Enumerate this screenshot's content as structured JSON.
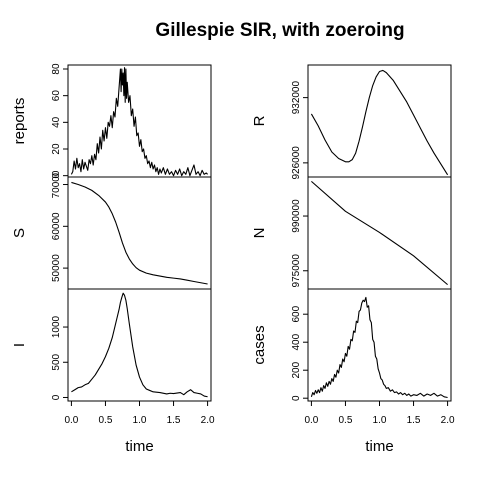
{
  "title": "Gillespie SIR, with zoeroing",
  "chart_data": [
    {
      "type": "line",
      "ylabel": "reports",
      "xlabel": "",
      "xlim": [
        -0.05,
        2.05
      ],
      "ylim": [
        -1,
        83
      ],
      "yticks": [
        0,
        20,
        40,
        60,
        80
      ],
      "x_tick_labels_shown": false,
      "points": [
        [
          0,
          1
        ],
        [
          0.02,
          3
        ],
        [
          0.04,
          11
        ],
        [
          0.06,
          5
        ],
        [
          0.08,
          13
        ],
        [
          0.1,
          6
        ],
        [
          0.12,
          9
        ],
        [
          0.14,
          3
        ],
        [
          0.16,
          12
        ],
        [
          0.18,
          5
        ],
        [
          0.2,
          10
        ],
        [
          0.22,
          7
        ],
        [
          0.24,
          4
        ],
        [
          0.26,
          12
        ],
        [
          0.28,
          9
        ],
        [
          0.3,
          15
        ],
        [
          0.32,
          8
        ],
        [
          0.34,
          16
        ],
        [
          0.36,
          12
        ],
        [
          0.38,
          24
        ],
        [
          0.4,
          17
        ],
        [
          0.42,
          29
        ],
        [
          0.44,
          20
        ],
        [
          0.46,
          34
        ],
        [
          0.48,
          26
        ],
        [
          0.5,
          36
        ],
        [
          0.52,
          28
        ],
        [
          0.54,
          40
        ],
        [
          0.56,
          37
        ],
        [
          0.58,
          45
        ],
        [
          0.6,
          36
        ],
        [
          0.62,
          48
        ],
        [
          0.64,
          44
        ],
        [
          0.66,
          58
        ],
        [
          0.68,
          52
        ],
        [
          0.7,
          66
        ],
        [
          0.72,
          80
        ],
        [
          0.73,
          63
        ],
        [
          0.74,
          80
        ],
        [
          0.75,
          68
        ],
        [
          0.76,
          77
        ],
        [
          0.77,
          60
        ],
        [
          0.78,
          81
        ],
        [
          0.79,
          55
        ],
        [
          0.8,
          80
        ],
        [
          0.81,
          58
        ],
        [
          0.82,
          70
        ],
        [
          0.84,
          55
        ],
        [
          0.86,
          60
        ],
        [
          0.88,
          45
        ],
        [
          0.9,
          50
        ],
        [
          0.92,
          37
        ],
        [
          0.94,
          44
        ],
        [
          0.96,
          30
        ],
        [
          0.98,
          32
        ],
        [
          1.0,
          22
        ],
        [
          1.02,
          27
        ],
        [
          1.04,
          18
        ],
        [
          1.06,
          20
        ],
        [
          1.08,
          13
        ],
        [
          1.1,
          15
        ],
        [
          1.12,
          9
        ],
        [
          1.14,
          11
        ],
        [
          1.16,
          6
        ],
        [
          1.18,
          10
        ],
        [
          1.2,
          5
        ],
        [
          1.22,
          8
        ],
        [
          1.24,
          3
        ],
        [
          1.26,
          6
        ],
        [
          1.28,
          1
        ],
        [
          1.3,
          5
        ],
        [
          1.32,
          2
        ],
        [
          1.35,
          6
        ],
        [
          1.38,
          1
        ],
        [
          1.41,
          5
        ],
        [
          1.44,
          1
        ],
        [
          1.47,
          3
        ],
        [
          1.5,
          0
        ],
        [
          1.53,
          4
        ],
        [
          1.56,
          1
        ],
        [
          1.59,
          5
        ],
        [
          1.62,
          0
        ],
        [
          1.65,
          3
        ],
        [
          1.68,
          1
        ],
        [
          1.71,
          6
        ],
        [
          1.74,
          0
        ],
        [
          1.77,
          4
        ],
        [
          1.8,
          8
        ],
        [
          1.83,
          1
        ],
        [
          1.86,
          3
        ],
        [
          1.89,
          0
        ],
        [
          1.92,
          4
        ],
        [
          1.95,
          1
        ],
        [
          1.98,
          2
        ],
        [
          2.0,
          1
        ]
      ]
    },
    {
      "type": "line",
      "ylabel": "S",
      "xlabel": "",
      "xlim": [
        -0.05,
        2.05
      ],
      "ylim": [
        45000,
        71800
      ],
      "yticks": [
        50000,
        60000,
        70000
      ],
      "x_tick_labels_shown": false,
      "points": [
        [
          0,
          70500
        ],
        [
          0.1,
          70000
        ],
        [
          0.2,
          69400
        ],
        [
          0.3,
          68600
        ],
        [
          0.4,
          67400
        ],
        [
          0.5,
          65800
        ],
        [
          0.55,
          64600
        ],
        [
          0.6,
          63000
        ],
        [
          0.65,
          61000
        ],
        [
          0.7,
          58600
        ],
        [
          0.75,
          56000
        ],
        [
          0.8,
          53800
        ],
        [
          0.85,
          52200
        ],
        [
          0.9,
          51000
        ],
        [
          0.95,
          50100
        ],
        [
          1.0,
          49500
        ],
        [
          1.1,
          48800
        ],
        [
          1.2,
          48400
        ],
        [
          1.3,
          48100
        ],
        [
          1.4,
          47800
        ],
        [
          1.5,
          47600
        ],
        [
          1.6,
          47400
        ],
        [
          1.7,
          47100
        ],
        [
          1.8,
          46800
        ],
        [
          1.9,
          46500
        ],
        [
          2.0,
          46200
        ]
      ]
    },
    {
      "type": "line",
      "ylabel": "I",
      "xlabel": "time",
      "xlim": [
        -0.05,
        2.05
      ],
      "ylim": [
        -50,
        1540
      ],
      "yticks": [
        0,
        500,
        1000
      ],
      "xticks": [
        0.0,
        0.5,
        1.0,
        1.5,
        2.0
      ],
      "xtick_labels": [
        "0.0",
        "0.5",
        "1.0",
        "1.5",
        "2.0"
      ],
      "x_tick_labels_shown": true,
      "points": [
        [
          0,
          80
        ],
        [
          0.05,
          110
        ],
        [
          0.1,
          140
        ],
        [
          0.15,
          150
        ],
        [
          0.2,
          180
        ],
        [
          0.25,
          200
        ],
        [
          0.3,
          260
        ],
        [
          0.35,
          320
        ],
        [
          0.4,
          400
        ],
        [
          0.45,
          480
        ],
        [
          0.5,
          580
        ],
        [
          0.55,
          700
        ],
        [
          0.6,
          850
        ],
        [
          0.65,
          1050
        ],
        [
          0.7,
          1250
        ],
        [
          0.72,
          1350
        ],
        [
          0.74,
          1420
        ],
        [
          0.76,
          1480
        ],
        [
          0.78,
          1450
        ],
        [
          0.8,
          1380
        ],
        [
          0.82,
          1260
        ],
        [
          0.85,
          1050
        ],
        [
          0.9,
          720
        ],
        [
          0.95,
          460
        ],
        [
          1.0,
          290
        ],
        [
          1.05,
          180
        ],
        [
          1.1,
          120
        ],
        [
          1.15,
          100
        ],
        [
          1.2,
          80
        ],
        [
          1.3,
          70
        ],
        [
          1.4,
          50
        ],
        [
          1.45,
          60
        ],
        [
          1.5,
          55
        ],
        [
          1.6,
          70
        ],
        [
          1.65,
          40
        ],
        [
          1.7,
          80
        ],
        [
          1.75,
          110
        ],
        [
          1.8,
          70
        ],
        [
          1.85,
          60
        ],
        [
          1.9,
          50
        ],
        [
          1.95,
          20
        ],
        [
          2.0,
          10
        ]
      ]
    },
    {
      "type": "line",
      "ylabel": "R",
      "xlabel": "",
      "xlim": [
        -0.05,
        2.05
      ],
      "ylim": [
        924700,
        935000
      ],
      "yticks": [
        926000,
        932000
      ],
      "x_tick_labels_shown": false,
      "points": [
        [
          0,
          930500
        ],
        [
          0.1,
          929400
        ],
        [
          0.2,
          928100
        ],
        [
          0.3,
          927000
        ],
        [
          0.4,
          926400
        ],
        [
          0.5,
          926100
        ],
        [
          0.55,
          926100
        ],
        [
          0.6,
          926300
        ],
        [
          0.65,
          926900
        ],
        [
          0.7,
          928000
        ],
        [
          0.75,
          929300
        ],
        [
          0.8,
          930700
        ],
        [
          0.85,
          932000
        ],
        [
          0.9,
          933100
        ],
        [
          0.95,
          933900
        ],
        [
          1.0,
          934400
        ],
        [
          1.05,
          934500
        ],
        [
          1.1,
          934300
        ],
        [
          1.2,
          933600
        ],
        [
          1.3,
          932600
        ],
        [
          1.4,
          931600
        ],
        [
          1.5,
          930400
        ],
        [
          1.6,
          929200
        ],
        [
          1.7,
          928000
        ],
        [
          1.8,
          926900
        ],
        [
          1.9,
          925900
        ],
        [
          2.0,
          924900
        ]
      ]
    },
    {
      "type": "line",
      "ylabel": "N",
      "xlabel": "",
      "xlim": [
        -0.05,
        2.05
      ],
      "ylim": [
        970000,
        1000700
      ],
      "yticks": [
        975000,
        990000
      ],
      "x_tick_labels_shown": false,
      "points": [
        [
          0,
          999500
        ],
        [
          0.5,
          991300
        ],
        [
          1.0,
          985500
        ],
        [
          1.5,
          979100
        ],
        [
          2.0,
          971200
        ]
      ]
    },
    {
      "type": "line",
      "ylabel": "cases",
      "xlabel": "time",
      "xlim": [
        -0.05,
        2.05
      ],
      "ylim": [
        -20,
        780
      ],
      "yticks": [
        0,
        200,
        400,
        600
      ],
      "xticks": [
        0.0,
        0.5,
        1.0,
        1.5,
        2.0
      ],
      "xtick_labels": [
        "0.0",
        "0.5",
        "1.0",
        "1.5",
        "2.0"
      ],
      "x_tick_labels_shown": true,
      "points": [
        [
          0,
          10
        ],
        [
          0.02,
          40
        ],
        [
          0.04,
          25
        ],
        [
          0.06,
          55
        ],
        [
          0.08,
          35
        ],
        [
          0.1,
          60
        ],
        [
          0.12,
          40
        ],
        [
          0.14,
          75
        ],
        [
          0.16,
          50
        ],
        [
          0.18,
          90
        ],
        [
          0.2,
          70
        ],
        [
          0.22,
          110
        ],
        [
          0.24,
          85
        ],
        [
          0.26,
          120
        ],
        [
          0.28,
          100
        ],
        [
          0.3,
          140
        ],
        [
          0.32,
          120
        ],
        [
          0.34,
          170
        ],
        [
          0.36,
          150
        ],
        [
          0.38,
          200
        ],
        [
          0.4,
          180
        ],
        [
          0.42,
          240
        ],
        [
          0.44,
          220
        ],
        [
          0.46,
          280
        ],
        [
          0.48,
          260
        ],
        [
          0.5,
          320
        ],
        [
          0.52,
          300
        ],
        [
          0.54,
          370
        ],
        [
          0.56,
          350
        ],
        [
          0.58,
          420
        ],
        [
          0.6,
          410
        ],
        [
          0.62,
          480
        ],
        [
          0.64,
          470
        ],
        [
          0.66,
          550
        ],
        [
          0.68,
          540
        ],
        [
          0.7,
          620
        ],
        [
          0.72,
          630
        ],
        [
          0.74,
          680
        ],
        [
          0.76,
          700
        ],
        [
          0.78,
          690
        ],
        [
          0.8,
          720
        ],
        [
          0.82,
          650
        ],
        [
          0.84,
          660
        ],
        [
          0.86,
          560
        ],
        [
          0.88,
          540
        ],
        [
          0.9,
          420
        ],
        [
          0.92,
          400
        ],
        [
          0.94,
          300
        ],
        [
          0.96,
          280
        ],
        [
          0.98,
          210
        ],
        [
          1.0,
          180
        ],
        [
          1.02,
          140
        ],
        [
          1.04,
          130
        ],
        [
          1.06,
          100
        ],
        [
          1.08,
          90
        ],
        [
          1.1,
          70
        ],
        [
          1.13,
          75
        ],
        [
          1.16,
          50
        ],
        [
          1.19,
          60
        ],
        [
          1.22,
          40
        ],
        [
          1.25,
          45
        ],
        [
          1.28,
          30
        ],
        [
          1.31,
          40
        ],
        [
          1.34,
          25
        ],
        [
          1.37,
          35
        ],
        [
          1.4,
          20
        ],
        [
          1.43,
          30
        ],
        [
          1.46,
          15
        ],
        [
          1.5,
          25
        ],
        [
          1.55,
          20
        ],
        [
          1.6,
          35
        ],
        [
          1.65,
          15
        ],
        [
          1.7,
          30
        ],
        [
          1.75,
          20
        ],
        [
          1.8,
          35
        ],
        [
          1.85,
          15
        ],
        [
          1.9,
          25
        ],
        [
          1.95,
          10
        ],
        [
          2.0,
          5
        ]
      ]
    }
  ]
}
